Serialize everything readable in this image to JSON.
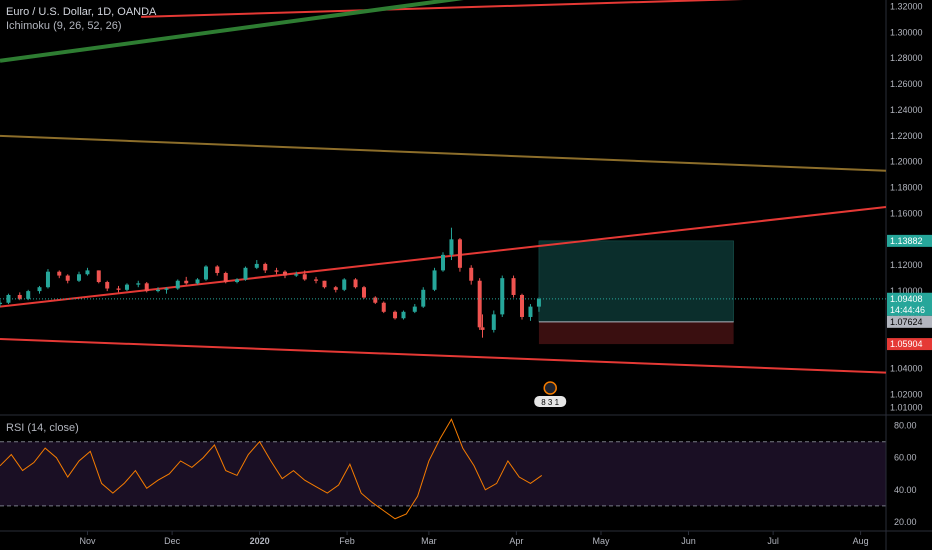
{
  "header": {
    "symbol": "Euro / U.S. Dollar, 1D, OANDA",
    "indicator": "Ichimoku (9, 26, 52, 26)"
  },
  "rsi_panel": {
    "label": "RSI (14, close)"
  },
  "colors": {
    "background": "#000000",
    "up_candle": "#26a69a",
    "down_candle": "#ef5350",
    "trendline_red": "#e53935",
    "trendline_green": "#2e7d32",
    "rsi_line": "#f57c00",
    "rsi_band": "#1a0f24",
    "profit_zone": "#0b2e2c",
    "loss_zone": "#3a0f10",
    "axis_text": "#b2b5be"
  },
  "price_axis": {
    "ticks": [
      "1.32000",
      "1.30000",
      "1.28000",
      "1.26000",
      "1.24000",
      "1.22000",
      "1.20000",
      "1.18000",
      "1.16000",
      "1.14000",
      "1.12000",
      "1.10000",
      "1.08000",
      "1.06000",
      "1.04000",
      "1.02000",
      "1.01000"
    ],
    "tick_values": [
      1.32,
      1.3,
      1.28,
      1.26,
      1.24,
      1.22,
      1.2,
      1.18,
      1.16,
      1.14,
      1.12,
      1.1,
      1.08,
      1.06,
      1.04,
      1.02,
      1.01
    ],
    "badges": [
      {
        "name": "target-price-badge",
        "text": "1.13882",
        "value": 1.13882,
        "color": "#26a69a",
        "text_color": "#ffffff"
      },
      {
        "name": "last-price-badge",
        "text": "1.09408",
        "value": 1.09408,
        "color": "#26a69a",
        "text_color": "#ffffff"
      },
      {
        "name": "countdown-badge",
        "text": "14:44:46",
        "value": 1.0855,
        "color": "#26a69a",
        "text_color": "#ffffff"
      },
      {
        "name": "entry-price-badge",
        "text": "1.07624",
        "value": 1.07624,
        "color": "#b2b5be",
        "text_color": "#000000"
      },
      {
        "name": "stop-price-badge",
        "text": "1.05904",
        "value": 1.05904,
        "color": "#e53935",
        "text_color": "#ffffff"
      }
    ],
    "range": [
      1.005,
      1.325
    ]
  },
  "rsi_axis": {
    "ticks": [
      "80.00",
      "60.00",
      "40.00",
      "20.00"
    ],
    "tick_values": [
      80,
      60,
      40,
      20
    ],
    "range": [
      15,
      86
    ],
    "bands": [
      70,
      30
    ]
  },
  "time_axis": {
    "labels": [
      "Nov",
      "Dec",
      "2020",
      "Feb",
      "Mar",
      "Apr",
      "May",
      "Jun",
      "Jul",
      "Aug"
    ],
    "bold": [
      false,
      false,
      true,
      false,
      false,
      false,
      false,
      false,
      false,
      false
    ]
  },
  "events": {
    "count_label": "8 3 1"
  },
  "chart_data": {
    "type": "candlestick",
    "symbol": "EURUSD",
    "timeframe": "1D",
    "x_start": "2019-10-01",
    "x_end": "2020-08-10",
    "ylim": [
      1.005,
      1.325
    ],
    "candles": [
      [
        "2019-10-01",
        1.09,
        1.093,
        1.088,
        1.091
      ],
      [
        "2019-10-04",
        1.091,
        1.098,
        1.09,
        1.097
      ],
      [
        "2019-10-08",
        1.097,
        1.099,
        1.093,
        1.094
      ],
      [
        "2019-10-11",
        1.094,
        1.101,
        1.093,
        1.1
      ],
      [
        "2019-10-15",
        1.1,
        1.104,
        1.098,
        1.103
      ],
      [
        "2019-10-18",
        1.103,
        1.117,
        1.102,
        1.115
      ],
      [
        "2019-10-22",
        1.115,
        1.116,
        1.11,
        1.112
      ],
      [
        "2019-10-25",
        1.112,
        1.113,
        1.106,
        1.108
      ],
      [
        "2019-10-29",
        1.108,
        1.115,
        1.107,
        1.113
      ],
      [
        "2019-11-01",
        1.113,
        1.118,
        1.112,
        1.116
      ],
      [
        "2019-11-05",
        1.116,
        1.116,
        1.106,
        1.107
      ],
      [
        "2019-11-08",
        1.107,
        1.108,
        1.1,
        1.102
      ],
      [
        "2019-11-12",
        1.102,
        1.104,
        1.099,
        1.101
      ],
      [
        "2019-11-15",
        1.101,
        1.106,
        1.1,
        1.105
      ],
      [
        "2019-11-19",
        1.105,
        1.108,
        1.103,
        1.106
      ],
      [
        "2019-11-22",
        1.106,
        1.107,
        1.099,
        1.1
      ],
      [
        "2019-11-26",
        1.1,
        1.103,
        1.099,
        1.101
      ],
      [
        "2019-11-29",
        1.101,
        1.103,
        1.098,
        1.102
      ],
      [
        "2019-12-03",
        1.102,
        1.109,
        1.101,
        1.108
      ],
      [
        "2019-12-06",
        1.108,
        1.111,
        1.105,
        1.106
      ],
      [
        "2019-12-10",
        1.106,
        1.11,
        1.105,
        1.109
      ],
      [
        "2019-12-13",
        1.109,
        1.12,
        1.108,
        1.119
      ],
      [
        "2019-12-17",
        1.119,
        1.12,
        1.112,
        1.114
      ],
      [
        "2019-12-20",
        1.114,
        1.115,
        1.106,
        1.107
      ],
      [
        "2019-12-24",
        1.107,
        1.11,
        1.106,
        1.109
      ],
      [
        "2019-12-27",
        1.109,
        1.119,
        1.108,
        1.118
      ],
      [
        "2019-12-31",
        1.118,
        1.124,
        1.117,
        1.121
      ],
      [
        "2020-01-03",
        1.121,
        1.122,
        1.114,
        1.116
      ],
      [
        "2020-01-07",
        1.116,
        1.118,
        1.113,
        1.115
      ],
      [
        "2020-01-10",
        1.115,
        1.116,
        1.11,
        1.112
      ],
      [
        "2020-01-14",
        1.112,
        1.115,
        1.111,
        1.113
      ],
      [
        "2020-01-17",
        1.113,
        1.116,
        1.108,
        1.109
      ],
      [
        "2020-01-21",
        1.109,
        1.111,
        1.106,
        1.108
      ],
      [
        "2020-01-24",
        1.108,
        1.108,
        1.102,
        1.103
      ],
      [
        "2020-01-28",
        1.103,
        1.104,
        1.099,
        1.101
      ],
      [
        "2020-01-31",
        1.101,
        1.11,
        1.1,
        1.109
      ],
      [
        "2020-02-04",
        1.109,
        1.11,
        1.102,
        1.103
      ],
      [
        "2020-02-07",
        1.103,
        1.104,
        1.094,
        1.095
      ],
      [
        "2020-02-11",
        1.095,
        1.096,
        1.09,
        1.091
      ],
      [
        "2020-02-14",
        1.091,
        1.092,
        1.083,
        1.084
      ],
      [
        "2020-02-18",
        1.084,
        1.085,
        1.078,
        1.079
      ],
      [
        "2020-02-21",
        1.079,
        1.085,
        1.078,
        1.084
      ],
      [
        "2020-02-25",
        1.084,
        1.09,
        1.083,
        1.088
      ],
      [
        "2020-02-28",
        1.088,
        1.103,
        1.087,
        1.101
      ],
      [
        "2020-03-03",
        1.101,
        1.118,
        1.1,
        1.116
      ],
      [
        "2020-03-06",
        1.116,
        1.13,
        1.115,
        1.128
      ],
      [
        "2020-03-09",
        1.128,
        1.149,
        1.124,
        1.14
      ],
      [
        "2020-03-12",
        1.14,
        1.141,
        1.115,
        1.118
      ],
      [
        "2020-03-16",
        1.118,
        1.12,
        1.105,
        1.108
      ],
      [
        "2020-03-19",
        1.108,
        1.11,
        1.07,
        1.072
      ],
      [
        "2020-03-20",
        1.072,
        1.082,
        1.064,
        1.07
      ],
      [
        "2020-03-24",
        1.07,
        1.085,
        1.068,
        1.082
      ],
      [
        "2020-03-27",
        1.082,
        1.112,
        1.08,
        1.11
      ],
      [
        "2020-03-31",
        1.11,
        1.112,
        1.095,
        1.097
      ],
      [
        "2020-04-03",
        1.097,
        1.098,
        1.078,
        1.08
      ],
      [
        "2020-04-06",
        1.08,
        1.09,
        1.077,
        1.088
      ],
      [
        "2020-04-09",
        1.088,
        1.095,
        1.084,
        1.094
      ]
    ],
    "rsi": [
      [
        "2019-10-01",
        55
      ],
      [
        "2019-10-05",
        62
      ],
      [
        "2019-10-09",
        52
      ],
      [
        "2019-10-13",
        57
      ],
      [
        "2019-10-17",
        66
      ],
      [
        "2019-10-21",
        60
      ],
      [
        "2019-10-25",
        48
      ],
      [
        "2019-10-29",
        58
      ],
      [
        "2019-11-02",
        64
      ],
      [
        "2019-11-06",
        44
      ],
      [
        "2019-11-10",
        38
      ],
      [
        "2019-11-14",
        44
      ],
      [
        "2019-11-18",
        52
      ],
      [
        "2019-11-22",
        41
      ],
      [
        "2019-11-26",
        46
      ],
      [
        "2019-11-30",
        50
      ],
      [
        "2019-12-04",
        58
      ],
      [
        "2019-12-08",
        54
      ],
      [
        "2019-12-12",
        60
      ],
      [
        "2019-12-16",
        68
      ],
      [
        "2019-12-20",
        52
      ],
      [
        "2019-12-24",
        49
      ],
      [
        "2019-12-28",
        62
      ],
      [
        "2020-01-01",
        70
      ],
      [
        "2020-01-05",
        58
      ],
      [
        "2020-01-09",
        47
      ],
      [
        "2020-01-13",
        52
      ],
      [
        "2020-01-17",
        46
      ],
      [
        "2020-01-21",
        42
      ],
      [
        "2020-01-25",
        38
      ],
      [
        "2020-01-29",
        43
      ],
      [
        "2020-02-02",
        56
      ],
      [
        "2020-02-06",
        38
      ],
      [
        "2020-02-10",
        32
      ],
      [
        "2020-02-14",
        27
      ],
      [
        "2020-02-18",
        22
      ],
      [
        "2020-02-22",
        25
      ],
      [
        "2020-02-26",
        36
      ],
      [
        "2020-03-01",
        58
      ],
      [
        "2020-03-05",
        72
      ],
      [
        "2020-03-09",
        84
      ],
      [
        "2020-03-13",
        66
      ],
      [
        "2020-03-17",
        55
      ],
      [
        "2020-03-21",
        40
      ],
      [
        "2020-03-25",
        44
      ],
      [
        "2020-03-29",
        58
      ],
      [
        "2020-04-02",
        48
      ],
      [
        "2020-04-06",
        44
      ],
      [
        "2020-04-10",
        49
      ]
    ],
    "trendlines": [
      {
        "name": "upper-red-line",
        "color": "#e53935",
        "points": [
          [
            "2019-11-20",
            1.312
          ],
          [
            "2020-07-25",
            1.328
          ]
        ]
      },
      {
        "name": "top-green-line",
        "color": "#2e7d32",
        "points": [
          [
            "2019-10-01",
            1.278
          ],
          [
            "2020-03-25",
            1.33
          ]
        ]
      },
      {
        "name": "mid-channel-line",
        "color": "#8d6e2a",
        "points": [
          [
            "2019-10-01",
            1.22
          ],
          [
            "2020-08-10",
            1.193
          ]
        ]
      },
      {
        "name": "rising-red-line",
        "color": "#e53935",
        "points": [
          [
            "2019-10-01",
            1.088
          ],
          [
            "2020-08-10",
            1.165
          ]
        ]
      },
      {
        "name": "lower-red-line",
        "color": "#e53935",
        "points": [
          [
            "2019-10-01",
            1.063
          ],
          [
            "2020-08-10",
            1.037
          ]
        ]
      }
    ],
    "position": {
      "type": "long",
      "start": "2020-04-09",
      "end": "2020-06-17",
      "entry": 1.07624,
      "target": 1.13882,
      "stop": 1.05904
    },
    "rsi_levels": [
      70,
      30
    ],
    "xlabel": "",
    "ylabel": ""
  }
}
